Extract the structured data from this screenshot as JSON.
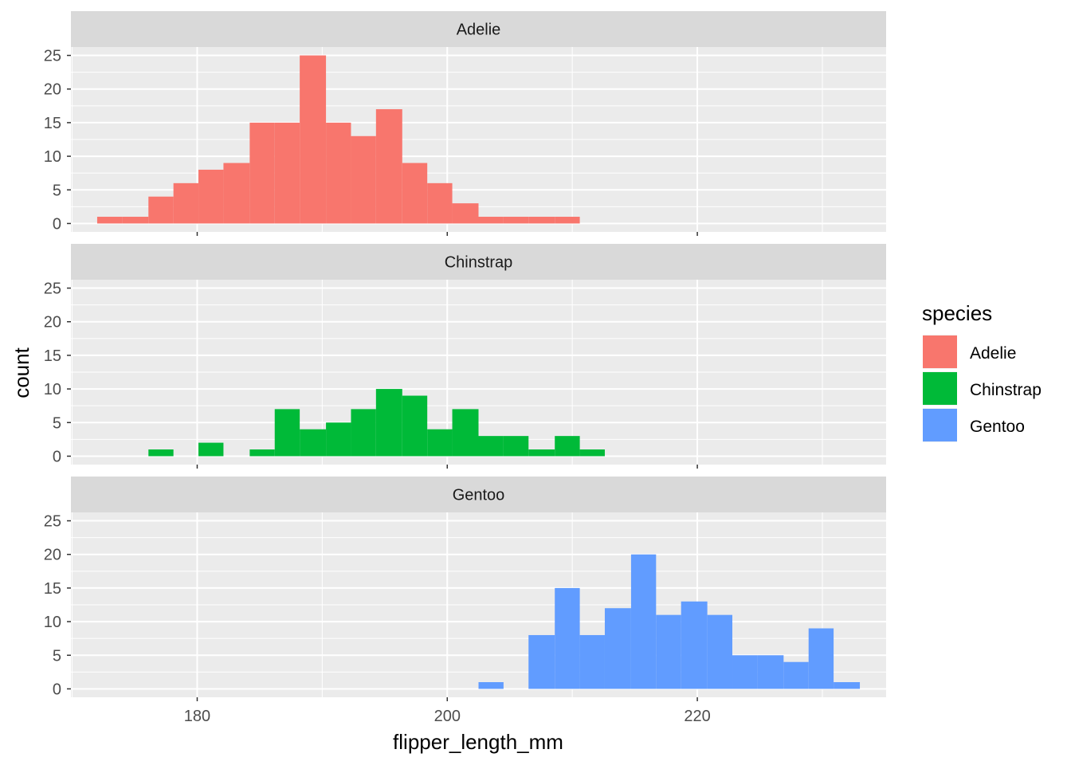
{
  "chart_data": {
    "type": "bar",
    "subtype": "faceted-histogram",
    "xlabel": "flipper_length_mm",
    "ylabel": "count",
    "xlim": [
      169.9,
      235.1
    ],
    "ylim": [
      -1.25,
      26.25
    ],
    "x_ticks": [
      180,
      200,
      220
    ],
    "y_ticks": [
      0,
      5,
      10,
      15,
      20,
      25
    ],
    "grid": true,
    "bin_width": 2.0333,
    "legend": {
      "title": "species",
      "position": "right",
      "entries": [
        "Adelie",
        "Chinstrap",
        "Gentoo"
      ]
    },
    "series": [
      {
        "name": "Adelie",
        "color": "#F8766D",
        "bins": [
          {
            "x0": 172.0,
            "x1": 174.0,
            "count": 1
          },
          {
            "x0": 174.0,
            "x1": 176.1,
            "count": 1
          },
          {
            "x0": 176.1,
            "x1": 178.1,
            "count": 4
          },
          {
            "x0": 178.1,
            "x1": 180.1,
            "count": 6
          },
          {
            "x0": 180.1,
            "x1": 182.1,
            "count": 8
          },
          {
            "x0": 182.1,
            "x1": 184.2,
            "count": 9
          },
          {
            "x0": 184.2,
            "x1": 186.2,
            "count": 15
          },
          {
            "x0": 186.2,
            "x1": 188.2,
            "count": 15
          },
          {
            "x0": 188.2,
            "x1": 190.3,
            "count": 25
          },
          {
            "x0": 190.3,
            "x1": 192.3,
            "count": 15
          },
          {
            "x0": 192.3,
            "x1": 194.3,
            "count": 13
          },
          {
            "x0": 194.3,
            "x1": 196.4,
            "count": 17
          },
          {
            "x0": 196.4,
            "x1": 198.4,
            "count": 9
          },
          {
            "x0": 198.4,
            "x1": 200.4,
            "count": 6
          },
          {
            "x0": 200.4,
            "x1": 202.5,
            "count": 3
          },
          {
            "x0": 202.5,
            "x1": 204.5,
            "count": 1
          },
          {
            "x0": 204.5,
            "x1": 206.5,
            "count": 1
          },
          {
            "x0": 206.5,
            "x1": 208.6,
            "count": 1
          },
          {
            "x0": 208.6,
            "x1": 210.6,
            "count": 1
          }
        ]
      },
      {
        "name": "Chinstrap",
        "color": "#00BA38",
        "bins": [
          {
            "x0": 176.1,
            "x1": 178.1,
            "count": 1
          },
          {
            "x0": 180.1,
            "x1": 182.1,
            "count": 2
          },
          {
            "x0": 184.2,
            "x1": 186.2,
            "count": 1
          },
          {
            "x0": 186.2,
            "x1": 188.2,
            "count": 7
          },
          {
            "x0": 188.2,
            "x1": 190.3,
            "count": 4
          },
          {
            "x0": 190.3,
            "x1": 192.3,
            "count": 5
          },
          {
            "x0": 192.3,
            "x1": 194.3,
            "count": 7
          },
          {
            "x0": 194.3,
            "x1": 196.4,
            "count": 10
          },
          {
            "x0": 196.4,
            "x1": 198.4,
            "count": 9
          },
          {
            "x0": 198.4,
            "x1": 200.4,
            "count": 4
          },
          {
            "x0": 200.4,
            "x1": 202.5,
            "count": 7
          },
          {
            "x0": 202.5,
            "x1": 204.5,
            "count": 3
          },
          {
            "x0": 204.5,
            "x1": 206.5,
            "count": 3
          },
          {
            "x0": 206.5,
            "x1": 208.6,
            "count": 1
          },
          {
            "x0": 208.6,
            "x1": 210.6,
            "count": 3
          },
          {
            "x0": 210.6,
            "x1": 212.6,
            "count": 1
          }
        ]
      },
      {
        "name": "Gentoo",
        "color": "#619CFF",
        "bins": [
          {
            "x0": 202.5,
            "x1": 204.5,
            "count": 1
          },
          {
            "x0": 206.5,
            "x1": 208.6,
            "count": 8
          },
          {
            "x0": 208.6,
            "x1": 210.6,
            "count": 15
          },
          {
            "x0": 210.6,
            "x1": 212.6,
            "count": 8
          },
          {
            "x0": 212.6,
            "x1": 214.7,
            "count": 12
          },
          {
            "x0": 214.7,
            "x1": 216.7,
            "count": 20
          },
          {
            "x0": 216.7,
            "x1": 218.7,
            "count": 11
          },
          {
            "x0": 218.7,
            "x1": 220.8,
            "count": 13
          },
          {
            "x0": 220.8,
            "x1": 222.8,
            "count": 11
          },
          {
            "x0": 222.8,
            "x1": 224.8,
            "count": 5
          },
          {
            "x0": 224.8,
            "x1": 226.9,
            "count": 5
          },
          {
            "x0": 226.9,
            "x1": 228.9,
            "count": 4
          },
          {
            "x0": 228.9,
            "x1": 230.9,
            "count": 9
          },
          {
            "x0": 230.9,
            "x1": 233.0,
            "count": 1
          }
        ]
      }
    ]
  }
}
